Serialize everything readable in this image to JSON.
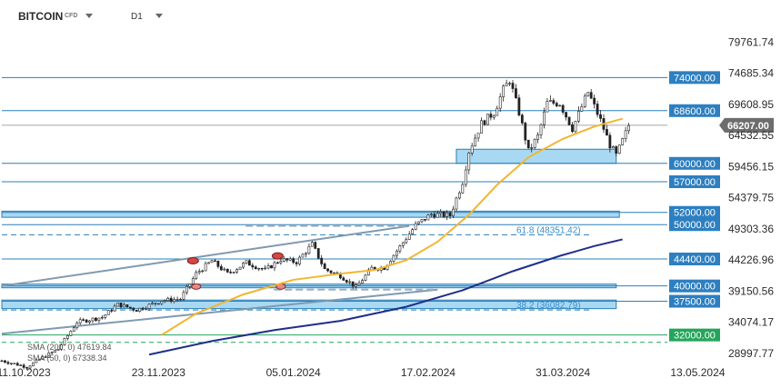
{
  "header": {
    "symbol": "BITCOIN",
    "instrument_type": "CFD",
    "timeframe": "D1"
  },
  "colors": {
    "level_line": "#2a7fb8",
    "zone_fill": "#a9d8f2",
    "tag_bg": "#2d7fc0",
    "green_tag": "#25a55b",
    "sma_fast": "#f2b630",
    "sma_slow": "#1f2f8a",
    "candle": "#222222",
    "current_price_tag": "#6d6d6d"
  },
  "icons": [
    "chevron-down-icon"
  ],
  "chart_data": {
    "type": "candlestick",
    "symbol": "BITCOIN",
    "timeframe": "D1",
    "y_axis": {
      "ticks": [
        79761.74,
        74685.34,
        69608.95,
        64532.55,
        59456.15,
        54379.75,
        49303.36,
        44226.96,
        39150.56,
        34074.17,
        28997.77
      ],
      "tick_labels": [
        "79761.74",
        "74685.34",
        "69608.95",
        "64532.55",
        "59456.15",
        "54379.75",
        "49303.36",
        "44226.96",
        "39150.56",
        "34074.17",
        "28997.77"
      ],
      "range": [
        27500,
        82500
      ],
      "position": "right"
    },
    "x_axis": {
      "tick_labels": [
        "11.10.2023",
        "23.11.2023",
        "05.01.2024",
        "17.02.2024",
        "31.03.2024",
        "13.05.2024"
      ],
      "range": [
        "2023-10-04",
        "2024-05-21"
      ]
    },
    "current_price": 66207.0,
    "current_price_label": "66207.00",
    "levels": [
      {
        "value": 74000,
        "label": "74000.00"
      },
      {
        "value": 68600,
        "label": "68600.00"
      },
      {
        "value": 60000,
        "label": "60000.00"
      },
      {
        "value": 57000,
        "label": "57000.00"
      },
      {
        "value": 52000,
        "label": "52000.00"
      },
      {
        "value": 50000,
        "label": "50000.00"
      },
      {
        "value": 44400,
        "label": "44400.00"
      },
      {
        "value": 40000,
        "label": "40000.00"
      },
      {
        "value": 37500,
        "label": "37500.00"
      },
      {
        "value": 32000,
        "label": "32000.00",
        "color": "green"
      }
    ],
    "zones": [
      {
        "low": 60000,
        "high": 62300,
        "x_start": "2024-02-26",
        "x_end": "2024-04-17"
      },
      {
        "low": 51200,
        "high": 52200,
        "x_start": "2023-10-04",
        "x_end": "2024-04-18"
      },
      {
        "low": 39700,
        "high": 40300,
        "x_start": "2023-10-04",
        "x_end": "2024-04-17"
      },
      {
        "low": 36300,
        "high": 37700,
        "x_start": "2023-10-04",
        "x_end": "2024-04-17"
      }
    ],
    "fibonacci": [
      {
        "ratio": "61.8",
        "value": 48351.42,
        "label": "61.8 (48351.42)"
      },
      {
        "ratio": "38.2",
        "value": 36082.79,
        "label": "38.2 (36082.79)"
      }
    ],
    "indicators": [
      {
        "name": "SMA",
        "params": "(200, 0)",
        "value": 47619.84,
        "label": "SMA (200, 0) 47619.84"
      },
      {
        "name": "SMA",
        "params": "(50, 0)",
        "value": 67338.34,
        "label": "SMA (50, 0) 67338.34"
      }
    ],
    "trendlines": [
      {
        "from": [
          "2023-10-04",
          40000
        ],
        "to": [
          "2024-02-11",
          49800
        ],
        "style": "solid"
      },
      {
        "from": [
          "2023-10-04",
          32200
        ],
        "to": [
          "2024-02-20",
          39400
        ],
        "style": "solid"
      }
    ],
    "sma_200": {
      "x": [
        "2023-11-20",
        "2023-12-10",
        "2023-12-30",
        "2024-01-20",
        "2024-02-10",
        "2024-02-28",
        "2024-03-15",
        "2024-03-30",
        "2024-04-10",
        "2024-04-19"
      ],
      "y": [
        28800,
        31000,
        32800,
        34300,
        36600,
        39300,
        42400,
        44900,
        46500,
        47600
      ]
    },
    "sma_50": {
      "x": [
        "2023-11-24",
        "2023-12-05",
        "2023-12-20",
        "2024-01-05",
        "2024-01-20",
        "2024-01-31",
        "2024-02-10",
        "2024-02-20",
        "2024-03-01",
        "2024-03-10",
        "2024-03-20",
        "2024-03-31",
        "2024-04-10",
        "2024-04-19"
      ],
      "y": [
        32000,
        35500,
        38600,
        41000,
        42000,
        42600,
        44200,
        47200,
        51600,
        56500,
        61000,
        64000,
        66000,
        67300
      ]
    },
    "price_path": [
      [
        "2023-10-04",
        27800
      ],
      [
        "2023-10-12",
        26800
      ],
      [
        "2023-10-17",
        28300
      ],
      [
        "2023-10-22",
        29700
      ],
      [
        "2023-10-28",
        34100
      ],
      [
        "2023-11-05",
        34900
      ],
      [
        "2023-11-10",
        37000
      ],
      [
        "2023-11-16",
        36100
      ],
      [
        "2023-11-24",
        37600
      ],
      [
        "2023-11-30",
        37900
      ],
      [
        "2023-12-05",
        42000
      ],
      [
        "2023-12-10",
        44100
      ],
      [
        "2023-12-15",
        42000
      ],
      [
        "2023-12-21",
        43800
      ],
      [
        "2023-12-27",
        42600
      ],
      [
        "2024-01-01",
        44300
      ],
      [
        "2024-01-06",
        43900
      ],
      [
        "2024-01-11",
        46800
      ],
      [
        "2024-01-15",
        42700
      ],
      [
        "2024-01-20",
        41700
      ],
      [
        "2024-01-25",
        39800
      ],
      [
        "2024-01-30",
        42900
      ],
      [
        "2024-02-03",
        43000
      ],
      [
        "2024-02-09",
        47100
      ],
      [
        "2024-02-13",
        49900
      ],
      [
        "2024-02-18",
        51700
      ],
      [
        "2024-02-24",
        51500
      ],
      [
        "2024-02-28",
        57000
      ],
      [
        "2024-03-01",
        62000
      ],
      [
        "2024-03-05",
        66500
      ],
      [
        "2024-03-09",
        68300
      ],
      [
        "2024-03-12",
        72000
      ],
      [
        "2024-03-14",
        73600
      ],
      [
        "2024-03-17",
        68300
      ],
      [
        "2024-03-20",
        62000
      ],
      [
        "2024-03-23",
        64400
      ],
      [
        "2024-03-26",
        69900
      ],
      [
        "2024-03-30",
        69800
      ],
      [
        "2024-04-03",
        65700
      ],
      [
        "2024-04-08",
        71600
      ],
      [
        "2024-04-12",
        67000
      ],
      [
        "2024-04-15",
        63000
      ],
      [
        "2024-04-17",
        61300
      ],
      [
        "2024-04-20",
        64900
      ],
      [
        "2024-04-21",
        66207
      ]
    ]
  }
}
